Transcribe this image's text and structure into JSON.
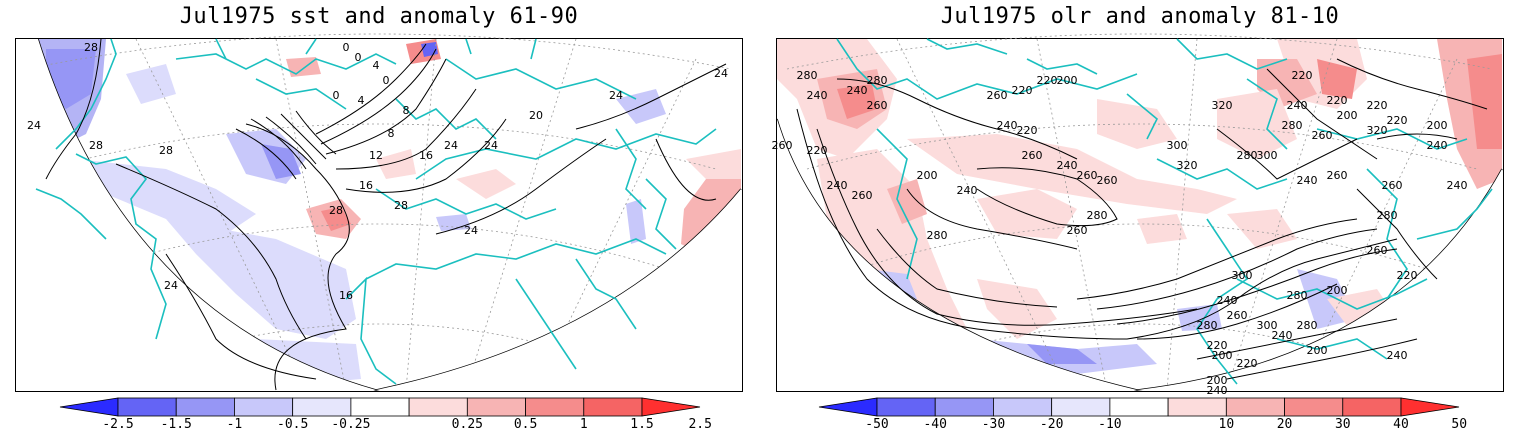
{
  "left_panel": {
    "title": "Jul1975 sst and anomaly 61-90",
    "colorbar_ticks": [
      "-2.5",
      "-1.5",
      "-1",
      "-0.5",
      "-0.25",
      "0.25",
      "0.5",
      "1",
      "1.5",
      "2.5"
    ],
    "colorbar_colors": [
      "#2b2bff",
      "#6464f5",
      "#9696f5",
      "#c8c8fa",
      "#e6e6fc",
      "#ffffff",
      "#fcdcdc",
      "#f7b4b4",
      "#f58c8c",
      "#f56464",
      "#ff3030"
    ],
    "contour_labels": [
      "28",
      "24",
      "28",
      "28",
      "0",
      "0",
      "4",
      "0",
      "0",
      "4",
      "8",
      "8",
      "12",
      "16",
      "16",
      "24",
      "24",
      "20",
      "24",
      "28",
      "28",
      "24",
      "24",
      "16",
      "24"
    ]
  },
  "right_panel": {
    "title": "Jul1975 olr and anomaly 81-10",
    "colorbar_ticks": [
      "-50",
      "-40",
      "-30",
      "-20",
      "-10",
      "10",
      "20",
      "30",
      "40",
      "50"
    ],
    "colorbar_colors": [
      "#2b2bff",
      "#6464f5",
      "#9696f5",
      "#c8c8fa",
      "#e6e6fc",
      "#ffffff",
      "#fcdcdc",
      "#f7b4b4",
      "#f58c8c",
      "#f56464",
      "#ff3030"
    ],
    "contour_labels": [
      "260",
      "280",
      "240",
      "280",
      "220",
      "240",
      "260",
      "240",
      "260",
      "260",
      "220",
      "220",
      "200",
      "220",
      "240",
      "260",
      "240",
      "260",
      "200",
      "280",
      "240",
      "260",
      "280",
      "260",
      "300",
      "320",
      "320",
      "300",
      "240",
      "280",
      "280",
      "260",
      "240",
      "220",
      "220",
      "240",
      "260",
      "300",
      "280",
      "240",
      "260",
      "300",
      "280",
      "220",
      "200",
      "200",
      "200",
      "220",
      "240",
      "260",
      "280",
      "240",
      "200",
      "220",
      "200",
      "320",
      "200",
      "220",
      "240",
      "280",
      "260",
      "220",
      "240"
    ]
  },
  "colors": {
    "coast": "#1bbfbf",
    "contour": "#000000",
    "grid": "#9a9a9a"
  }
}
